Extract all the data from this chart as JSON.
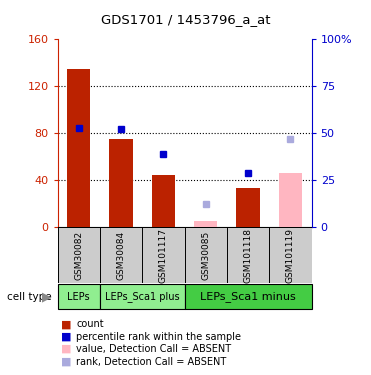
{
  "title": "GDS1701 / 1453796_a_at",
  "samples": [
    "GSM30082",
    "GSM30084",
    "GSM101117",
    "GSM30085",
    "GSM101118",
    "GSM101119"
  ],
  "bar_values_red": [
    135,
    75,
    44,
    null,
    33,
    null
  ],
  "bar_values_pink": [
    null,
    null,
    null,
    5,
    null,
    46
  ],
  "blue_squares_pct": [
    53,
    52,
    39,
    null,
    29,
    null
  ],
  "light_blue_squares_pct": [
    null,
    null,
    null,
    12,
    null,
    47
  ],
  "ylim_left": [
    0,
    160
  ],
  "ylim_right": [
    0,
    100
  ],
  "yticks_left": [
    0,
    40,
    80,
    120,
    160
  ],
  "yticks_right": [
    0,
    25,
    50,
    75,
    100
  ],
  "bar_color_red": "#BB2200",
  "bar_color_pink": "#FFB6C1",
  "blue_color": "#0000CC",
  "light_blue_color": "#AAAADD",
  "left_axis_color": "#CC2200",
  "right_axis_color": "#0000CC",
  "group_spans": [
    [
      0,
      0,
      "LEPs",
      "#90EE90"
    ],
    [
      1,
      2,
      "LEPs_Sca1 plus",
      "#90EE90"
    ],
    [
      3,
      5,
      "LEPs_Sca1 minus",
      "#44CC44"
    ]
  ],
  "legend_items": [
    [
      "#BB2200",
      "count"
    ],
    [
      "#0000CC",
      "percentile rank within the sample"
    ],
    [
      "#FFB6C1",
      "value, Detection Call = ABSENT"
    ],
    [
      "#AAAADD",
      "rank, Detection Call = ABSENT"
    ]
  ]
}
